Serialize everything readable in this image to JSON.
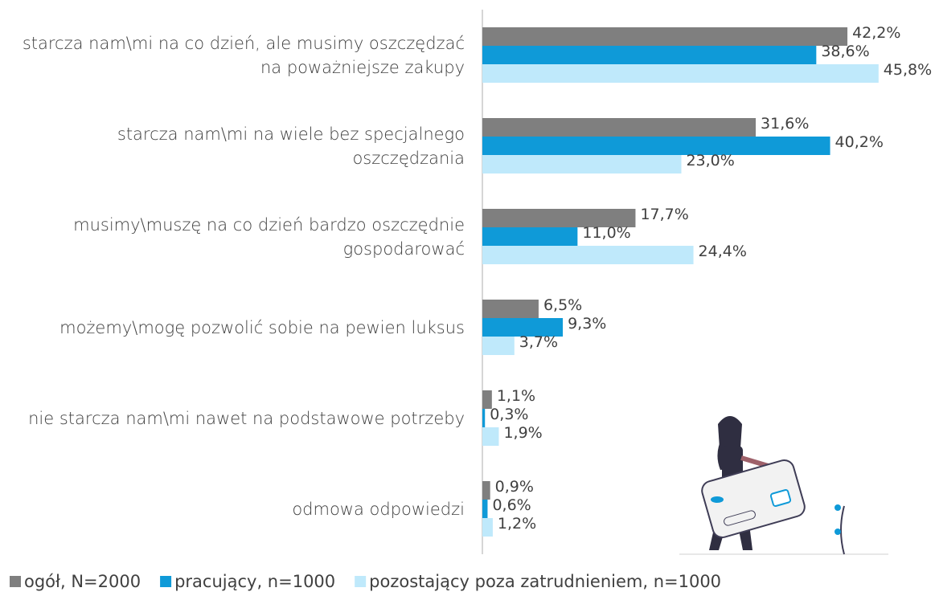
{
  "chart_data": {
    "type": "bar",
    "orientation": "horizontal",
    "categories": [
      "starcza nam\\mi na co dzień, ale musimy oszczędzać na poważniejsze zakupy",
      "starcza nam\\mi na wiele bez specjalnego oszczędzania",
      "musimy\\muszę na co dzień bardzo oszczędnie gospodarować",
      "możemy\\mogę pozwolić sobie na pewien luksus",
      "nie starcza nam\\mi nawet na podstawowe potrzeby",
      "odmowa odpowiedzi"
    ],
    "series": [
      {
        "name": "ogół, N=2000",
        "color": "#7f7f7f",
        "values": [
          42.2,
          31.6,
          17.7,
          6.5,
          1.1,
          0.9
        ],
        "value_labels": [
          "42,2%",
          "31,6%",
          "17,7%",
          "6,5%",
          "1,1%",
          "0,9%"
        ]
      },
      {
        "name": "pracujący, n=1000",
        "color": "#0f9ad8",
        "values": [
          38.6,
          40.2,
          11.0,
          9.3,
          0.3,
          0.6
        ],
        "value_labels": [
          "38,6%",
          "40,2%",
          "11,0%",
          "9,3%",
          "0,3%",
          "0,6%"
        ]
      },
      {
        "name": "pozostający poza zatrudnieniem, n=1000",
        "color": "#bfe9fb",
        "values": [
          45.8,
          23.0,
          24.4,
          3.7,
          1.9,
          1.2
        ],
        "value_labels": [
          "45,8%",
          "23,0%",
          "24,4%",
          "3,7%",
          "1,9%",
          "1,2%"
        ]
      }
    ],
    "legend": "bottom"
  }
}
